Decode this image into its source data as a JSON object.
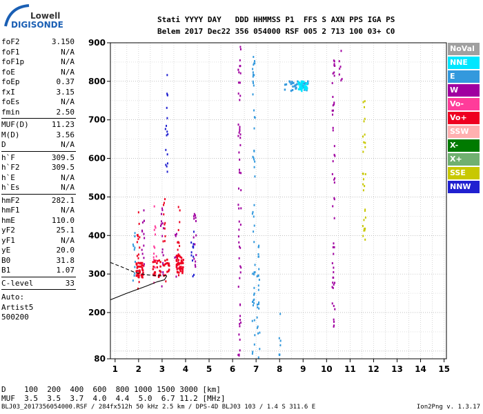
{
  "logo": {
    "line1": "Lowell",
    "line2": "DIGISONDE"
  },
  "header": {
    "line1": "Stati YYYY DAY   DDD HHMMSS P1  FFS S AXN PPS IGA PS",
    "line2": "Belem 2017 Dec22 356 054000 RSF 005 2 713 100 03+ C0"
  },
  "params": [
    {
      "name": "foF2",
      "value": "3.150"
    },
    {
      "name": "foF1",
      "value": "N/A"
    },
    {
      "name": "foF1p",
      "value": "N/A"
    },
    {
      "name": "foE",
      "value": "N/A"
    },
    {
      "name": "foEp",
      "value": "0.37"
    },
    {
      "name": "fxI",
      "value": "3.15"
    },
    {
      "name": "foEs",
      "value": "N/A"
    },
    {
      "name": "fmin",
      "value": "2.50"
    },
    {
      "name": "MUF(D)",
      "value": "11.23"
    },
    {
      "name": "M(D)",
      "value": "3.56"
    },
    {
      "name": "D",
      "value": "N/A"
    },
    {
      "name": "h`F",
      "value": "309.5"
    },
    {
      "name": "h`F2",
      "value": "309.5"
    },
    {
      "name": "h`E",
      "value": "N/A"
    },
    {
      "name": "h`Es",
      "value": "N/A"
    },
    {
      "name": "hmF2",
      "value": "282.1"
    },
    {
      "name": "hmF1",
      "value": "N/A"
    },
    {
      "name": "hmE",
      "value": "110.0"
    },
    {
      "name": "yF2",
      "value": "25.1"
    },
    {
      "name": "yF1",
      "value": "N/A"
    },
    {
      "name": "yE",
      "value": "20.0"
    },
    {
      "name": "B0",
      "value": "31.8"
    },
    {
      "name": "B1",
      "value": "1.07"
    },
    {
      "name": "C-level",
      "value": "33"
    }
  ],
  "auto": {
    "line1": "Auto:",
    "line2": "Artist5",
    "line3": "500200"
  },
  "legend": [
    {
      "label": "NoVal",
      "color": "#a0a0a0"
    },
    {
      "label": "NNE",
      "color": "#00e6ff"
    },
    {
      "label": "E",
      "color": "#3399dd"
    },
    {
      "label": "W",
      "color": "#a000a0"
    },
    {
      "label": "Vo-",
      "color": "#ff3c9a"
    },
    {
      "label": "Vo+",
      "color": "#ee0020"
    },
    {
      "label": "SSW",
      "color": "#ffb0b0"
    },
    {
      "label": "X-",
      "color": "#007a00"
    },
    {
      "label": "X+",
      "color": "#70b070"
    },
    {
      "label": "SSE",
      "color": "#c8c800"
    },
    {
      "label": "NNW",
      "color": "#2020d0"
    }
  ],
  "chart_data": {
    "type": "scatter",
    "title": "",
    "xlabel": "",
    "ylabel": "",
    "xlim": [
      0.8,
      15.1
    ],
    "ylim": [
      80,
      900
    ],
    "xticks": [
      1,
      2,
      3,
      4,
      5,
      6,
      7,
      8,
      9,
      10,
      11,
      12,
      13,
      14,
      15
    ],
    "yticks": [
      80,
      200,
      300,
      400,
      500,
      600,
      700,
      800,
      900
    ],
    "grid": true,
    "legend_position": "right",
    "traces": [
      {
        "name": "o-trace",
        "style": "solid",
        "points": [
          [
            0.8,
            233
          ],
          [
            1.5,
            250
          ],
          [
            2.3,
            268
          ],
          [
            2.8,
            280
          ],
          [
            3.1,
            285
          ],
          [
            3.2,
            295
          ]
        ]
      },
      {
        "name": "x-trace",
        "style": "dashed",
        "points": [
          [
            0.8,
            330
          ],
          [
            1.3,
            318
          ],
          [
            1.8,
            305
          ],
          [
            2.3,
            298
          ],
          [
            2.9,
            295
          ],
          [
            3.2,
            296
          ]
        ]
      }
    ],
    "echo_columns": [
      {
        "x": 1.8,
        "y0": 240,
        "y1": 420,
        "color": "#3399dd"
      },
      {
        "x": 2.0,
        "y0": 260,
        "y1": 460,
        "color": "#ee0020"
      },
      {
        "x": 2.2,
        "y0": 280,
        "y1": 470,
        "color": "#a000a0"
      },
      {
        "x": 2.7,
        "y0": 270,
        "y1": 480,
        "color": "#ff3c9a"
      },
      {
        "x": 3.0,
        "y0": 260,
        "y1": 480,
        "color": "#a000a0"
      },
      {
        "x": 3.1,
        "y0": 270,
        "y1": 500,
        "color": "#ee0020"
      },
      {
        "x": 3.2,
        "y0": 550,
        "y1": 820,
        "color": "#2020d0"
      },
      {
        "x": 3.6,
        "y0": 280,
        "y1": 430,
        "color": "#a000a0"
      },
      {
        "x": 3.7,
        "y0": 290,
        "y1": 480,
        "color": "#ee0020"
      },
      {
        "x": 4.3,
        "y0": 290,
        "y1": 460,
        "color": "#2020d0"
      },
      {
        "x": 4.4,
        "y0": 300,
        "y1": 470,
        "color": "#a000a0"
      },
      {
        "x": 6.3,
        "y0": 80,
        "y1": 890,
        "color": "#a000a0"
      },
      {
        "x": 6.9,
        "y0": 80,
        "y1": 880,
        "color": "#3399dd"
      },
      {
        "x": 7.1,
        "y0": 80,
        "y1": 400,
        "color": "#3399dd"
      },
      {
        "x": 8.0,
        "y0": 80,
        "y1": 200,
        "color": "#3399dd"
      },
      {
        "x": 10.3,
        "y0": 160,
        "y1": 880,
        "color": "#a000a0"
      },
      {
        "x": 10.6,
        "y0": 800,
        "y1": 890,
        "color": "#a000a0"
      },
      {
        "x": 11.6,
        "y0": 370,
        "y1": 760,
        "color": "#c8c800"
      }
    ],
    "echo_patches": [
      {
        "x0": 8.2,
        "x1": 9.3,
        "y0": 775,
        "y1": 800,
        "color": "#3399dd"
      },
      {
        "x0": 8.8,
        "x1": 9.2,
        "y0": 775,
        "y1": 800,
        "color": "#00e6ff"
      },
      {
        "x0": 2.6,
        "x1": 3.3,
        "y0": 290,
        "y1": 340,
        "color": "#ee0020"
      },
      {
        "x0": 1.9,
        "x1": 2.2,
        "y0": 290,
        "y1": 330,
        "color": "#ee0020"
      },
      {
        "x0": 3.6,
        "x1": 3.9,
        "y0": 300,
        "y1": 350,
        "color": "#ee0020"
      }
    ]
  },
  "bottom": {
    "d_line": "D    100  200  400  600  800 1000 1500 3000 [km]",
    "muf_line": "MUF  3.5  3.5  3.7  4.0  4.4  5.0  6.7 11.2 [MHz]",
    "footer_left": "BLJ03_2017356054000.RSF / 284fx512h 50 kHz 2.5 km / DPS-4D BLJ03 103 / 1.4 S 311.6 E",
    "footer_right": "Ion2Png v. 1.3.17"
  }
}
